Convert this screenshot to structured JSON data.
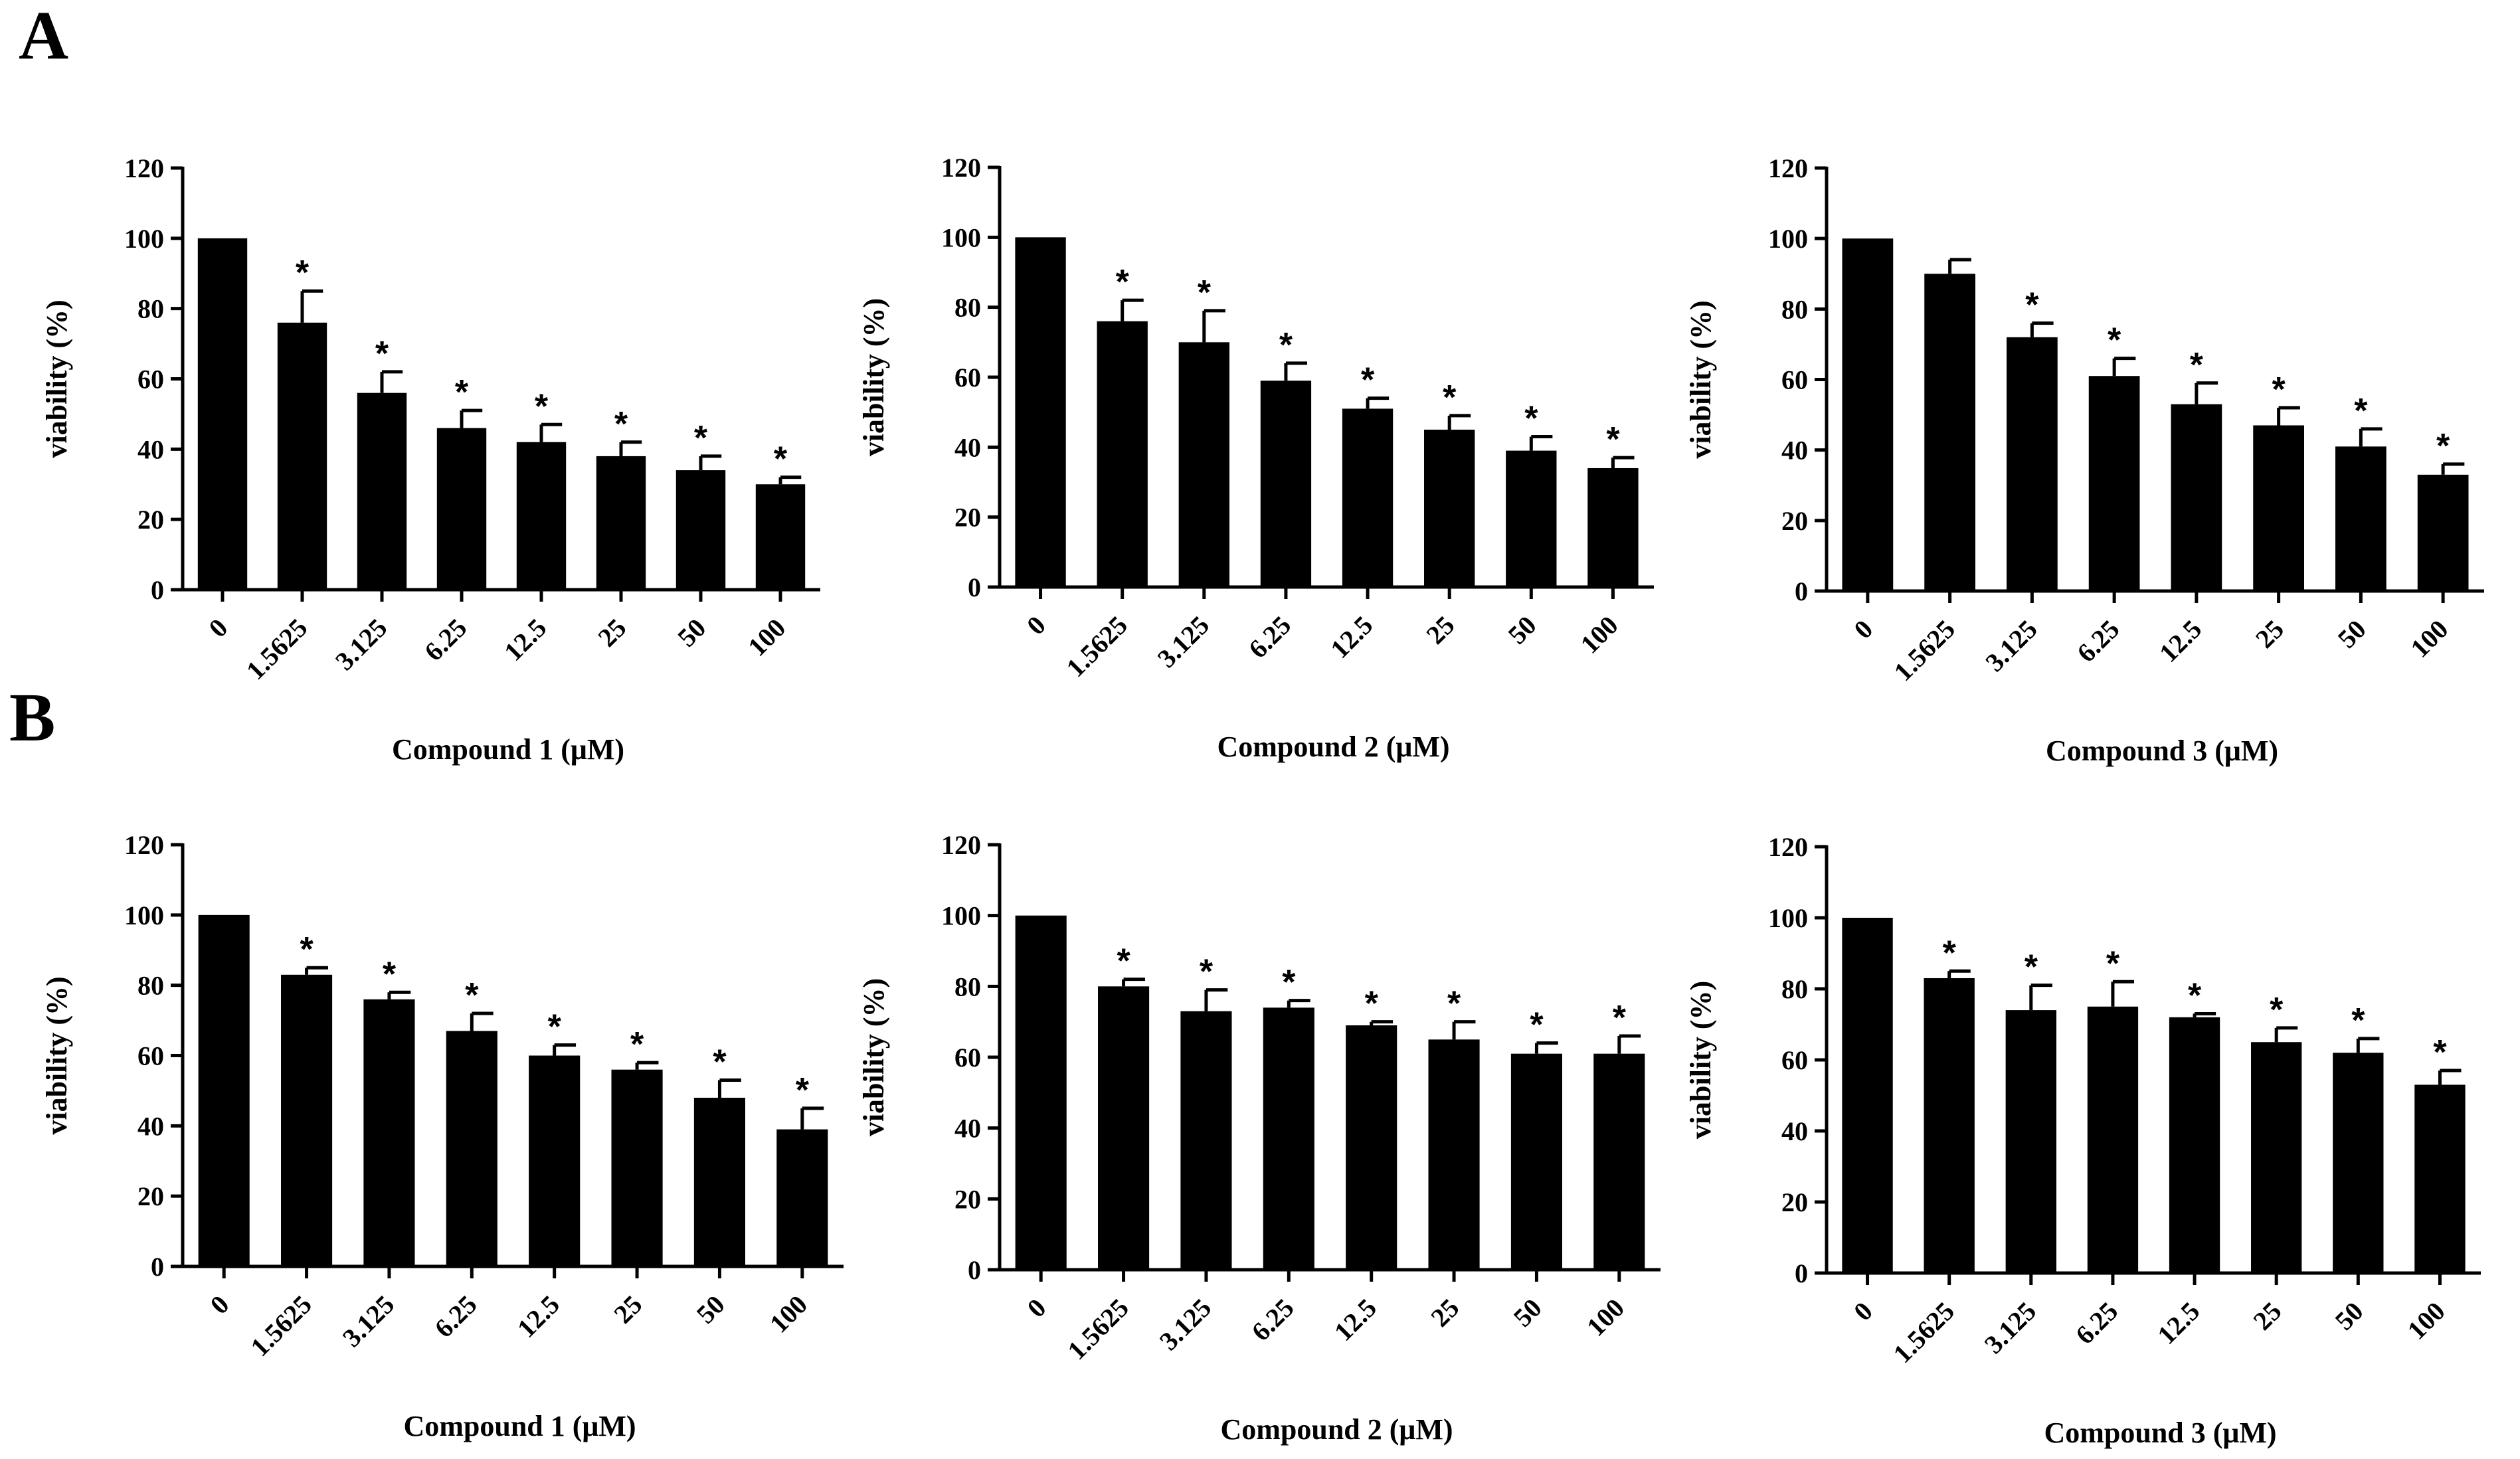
{
  "panels": [
    {
      "letter": "A"
    },
    {
      "letter": "B"
    }
  ],
  "chart_data": [
    {
      "type": "bar",
      "panel": "A",
      "categories": [
        "0",
        "1.5625",
        "3.125",
        "6.25",
        "12.5",
        "25",
        "50",
        "100"
      ],
      "values": [
        100,
        76,
        56,
        46,
        42,
        38,
        34,
        30
      ],
      "errors": [
        0,
        9,
        6,
        5,
        5,
        4,
        4,
        2
      ],
      "significance": [
        "",
        "*",
        "*",
        "*",
        "*",
        "*",
        "*",
        "*"
      ],
      "xlabel": "Compound 1 (μM)",
      "ylabel": "viability (%)",
      "ylim": [
        0,
        120
      ],
      "yticks": [
        0,
        20,
        40,
        60,
        80,
        100,
        120
      ],
      "bar_color": "#000000"
    },
    {
      "type": "bar",
      "panel": "A",
      "categories": [
        "0",
        "1.5625",
        "3.125",
        "6.25",
        "12.5",
        "25",
        "50",
        "100"
      ],
      "values": [
        100,
        76,
        70,
        59,
        51,
        45,
        39,
        34
      ],
      "errors": [
        0,
        6,
        9,
        5,
        3,
        4,
        4,
        3
      ],
      "significance": [
        "",
        "*",
        "*",
        "*",
        "*",
        "*",
        "*",
        "*"
      ],
      "xlabel": "Compound 2 (μM)",
      "ylabel": "viability (%)",
      "ylim": [
        0,
        120
      ],
      "yticks": [
        0,
        20,
        40,
        60,
        80,
        100,
        120
      ],
      "bar_color": "#000000"
    },
    {
      "type": "bar",
      "panel": "A",
      "categories": [
        "0",
        "1.5625",
        "3.125",
        "6.25",
        "12.5",
        "25",
        "50",
        "100"
      ],
      "values": [
        100,
        90,
        72,
        61,
        53,
        47,
        41,
        33
      ],
      "errors": [
        0,
        4,
        4,
        5,
        6,
        5,
        5,
        3
      ],
      "significance": [
        "",
        "",
        "*",
        "*",
        "*",
        "*",
        "*",
        "*"
      ],
      "xlabel": "Compound 3 (μM)",
      "ylabel": "viability (%)",
      "ylim": [
        0,
        120
      ],
      "yticks": [
        0,
        20,
        40,
        60,
        80,
        100,
        120
      ],
      "bar_color": "#000000"
    },
    {
      "type": "bar",
      "panel": "B",
      "categories": [
        "0",
        "1.5625",
        "3.125",
        "6.25",
        "12.5",
        "25",
        "50",
        "100"
      ],
      "values": [
        100,
        83,
        76,
        67,
        60,
        56,
        48,
        39
      ],
      "errors": [
        0,
        2,
        2,
        5,
        3,
        2,
        5,
        6
      ],
      "significance": [
        "",
        "*",
        "*",
        "*",
        "*",
        "*",
        "*",
        "*"
      ],
      "xlabel": "Compound 1 (μM)",
      "ylabel": "viability (%)",
      "ylim": [
        0,
        120
      ],
      "yticks": [
        0,
        20,
        40,
        60,
        80,
        100,
        120
      ],
      "bar_color": "#000000"
    },
    {
      "type": "bar",
      "panel": "B",
      "categories": [
        "0",
        "1.5625",
        "3.125",
        "6.25",
        "12.5",
        "25",
        "50",
        "100"
      ],
      "values": [
        100,
        80,
        73,
        74,
        69,
        65,
        61,
        61
      ],
      "errors": [
        0,
        2,
        6,
        2,
        1,
        5,
        3,
        5
      ],
      "significance": [
        "",
        "*",
        "*",
        "*",
        "*",
        "*",
        "*",
        "*"
      ],
      "xlabel": "Compound 2 (μM)",
      "ylabel": "viability (%)",
      "ylim": [
        0,
        120
      ],
      "yticks": [
        0,
        20,
        40,
        60,
        80,
        100,
        120
      ],
      "bar_color": "#000000"
    },
    {
      "type": "bar",
      "panel": "B",
      "categories": [
        "0",
        "1.5625",
        "3.125",
        "6.25",
        "12.5",
        "25",
        "50",
        "100"
      ],
      "values": [
        100,
        83,
        74,
        75,
        72,
        65,
        62,
        53
      ],
      "errors": [
        0,
        2,
        7,
        7,
        1,
        4,
        4,
        4
      ],
      "significance": [
        "",
        "*",
        "*",
        "*",
        "*",
        "*",
        "*",
        "*"
      ],
      "xlabel": "Compound 3 (μM)",
      "ylabel": "viability (%)",
      "ylim": [
        0,
        120
      ],
      "yticks": [
        0,
        20,
        40,
        60,
        80,
        100,
        120
      ],
      "bar_color": "#000000"
    }
  ]
}
